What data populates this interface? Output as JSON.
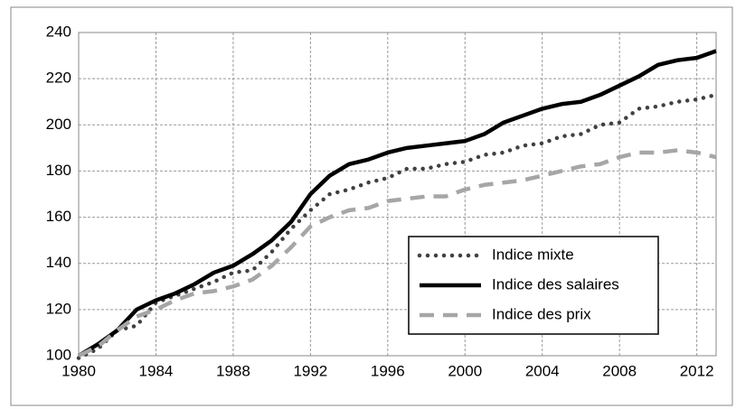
{
  "chart_data": {
    "type": "line",
    "x": [
      1980,
      1981,
      1982,
      1983,
      1984,
      1985,
      1986,
      1987,
      1988,
      1989,
      1990,
      1991,
      1992,
      1993,
      1994,
      1995,
      1996,
      1997,
      1998,
      1999,
      2000,
      2001,
      2002,
      2003,
      2004,
      2005,
      2006,
      2007,
      2008,
      2009,
      2010,
      2011,
      2012,
      2013
    ],
    "series": [
      {
        "name": "Indice mixte",
        "color": "#404040",
        "style": "dotted",
        "values": [
          99,
          103,
          111,
          113,
          123,
          126,
          129,
          132,
          136,
          137,
          145,
          155,
          163,
          170,
          172,
          175,
          177,
          181,
          181,
          183,
          184,
          187,
          188,
          191,
          192,
          195,
          196,
          200,
          201,
          207,
          208,
          210,
          211,
          213
        ]
      },
      {
        "name": "Indice des salaires",
        "color": "#000000",
        "style": "solid",
        "values": [
          100,
          105,
          111,
          120,
          124,
          127,
          131,
          136,
          139,
          144,
          150,
          158,
          170,
          178,
          183,
          185,
          188,
          190,
          191,
          192,
          193,
          196,
          201,
          204,
          207,
          209,
          210,
          213,
          217,
          221,
          226,
          228,
          229,
          232
        ]
      },
      {
        "name": "Indice des prix",
        "color": "#a6a6a6",
        "style": "dashed",
        "values": [
          100,
          104,
          111,
          117,
          120,
          124,
          127,
          128,
          130,
          133,
          139,
          147,
          156,
          160,
          163,
          164,
          167,
          168,
          169,
          169,
          172,
          174,
          175,
          176,
          178,
          180,
          182,
          183,
          186,
          188,
          188,
          189,
          188,
          186
        ]
      }
    ],
    "xlim": [
      1980,
      2013
    ],
    "xticks": [
      1980,
      1984,
      1988,
      1992,
      1996,
      2000,
      2004,
      2008,
      2012
    ],
    "ylim": [
      100,
      240
    ],
    "yticks": [
      100,
      120,
      140,
      160,
      180,
      200,
      220,
      240
    ],
    "grid": true,
    "legend": "lower right"
  }
}
